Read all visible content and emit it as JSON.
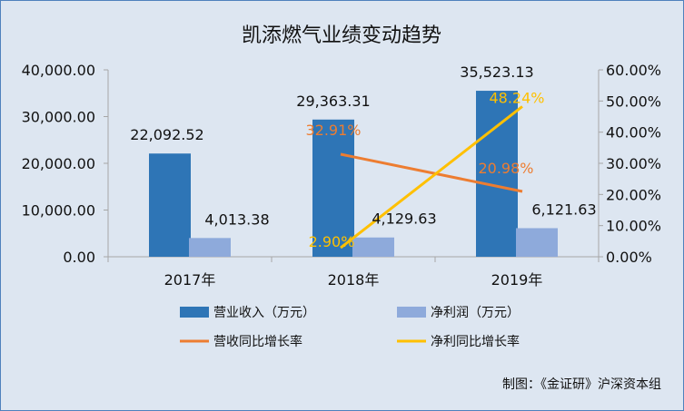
{
  "chart_data": {
    "type": "bar",
    "title": "凯添燃气业绩变动趋势",
    "categories": [
      "2017年",
      "2018年",
      "2019年"
    ],
    "series": [
      {
        "name": "营业收入（万元）",
        "kind": "bar",
        "axis": "left",
        "color": "#2e75b6",
        "values": [
          22092.52,
          29363.31,
          35523.13
        ],
        "labels": [
          "22,092.52",
          "29,363.31",
          "35,523.13"
        ]
      },
      {
        "name": "净利润（万元）",
        "kind": "bar",
        "axis": "left",
        "color": "#8eaadb",
        "values": [
          4013.38,
          4129.63,
          6121.63
        ],
        "labels": [
          "4,013.38",
          "4,129.63",
          "6,121.63"
        ]
      },
      {
        "name": "营收同比增长率",
        "kind": "line",
        "axis": "right",
        "color": "#ed7d31",
        "values": [
          null,
          32.91,
          20.98
        ],
        "labels": [
          "",
          "32.91%",
          "20.98%"
        ]
      },
      {
        "name": "净利同比增长率",
        "kind": "line",
        "axis": "right",
        "color": "#ffc000",
        "values": [
          null,
          2.9,
          48.24
        ],
        "labels": [
          "",
          "2.90%",
          "48.24%"
        ]
      }
    ],
    "y_left": {
      "range": [
        0,
        40000
      ],
      "ticks": [
        0,
        10000,
        20000,
        30000,
        40000
      ],
      "tick_labels": [
        "0.00",
        "10,000.00",
        "20,000.00",
        "30,000.00",
        "40,000.00"
      ]
    },
    "y_right": {
      "range": [
        0,
        60
      ],
      "ticks": [
        0,
        10,
        20,
        30,
        40,
        50,
        60
      ],
      "tick_labels": [
        "0.00%",
        "10.00%",
        "20.00%",
        "30.00%",
        "40.00%",
        "50.00%",
        "60.00%"
      ]
    },
    "grid": false,
    "legend_position": "bottom",
    "source": "制图：《金证研》沪深资本组"
  }
}
